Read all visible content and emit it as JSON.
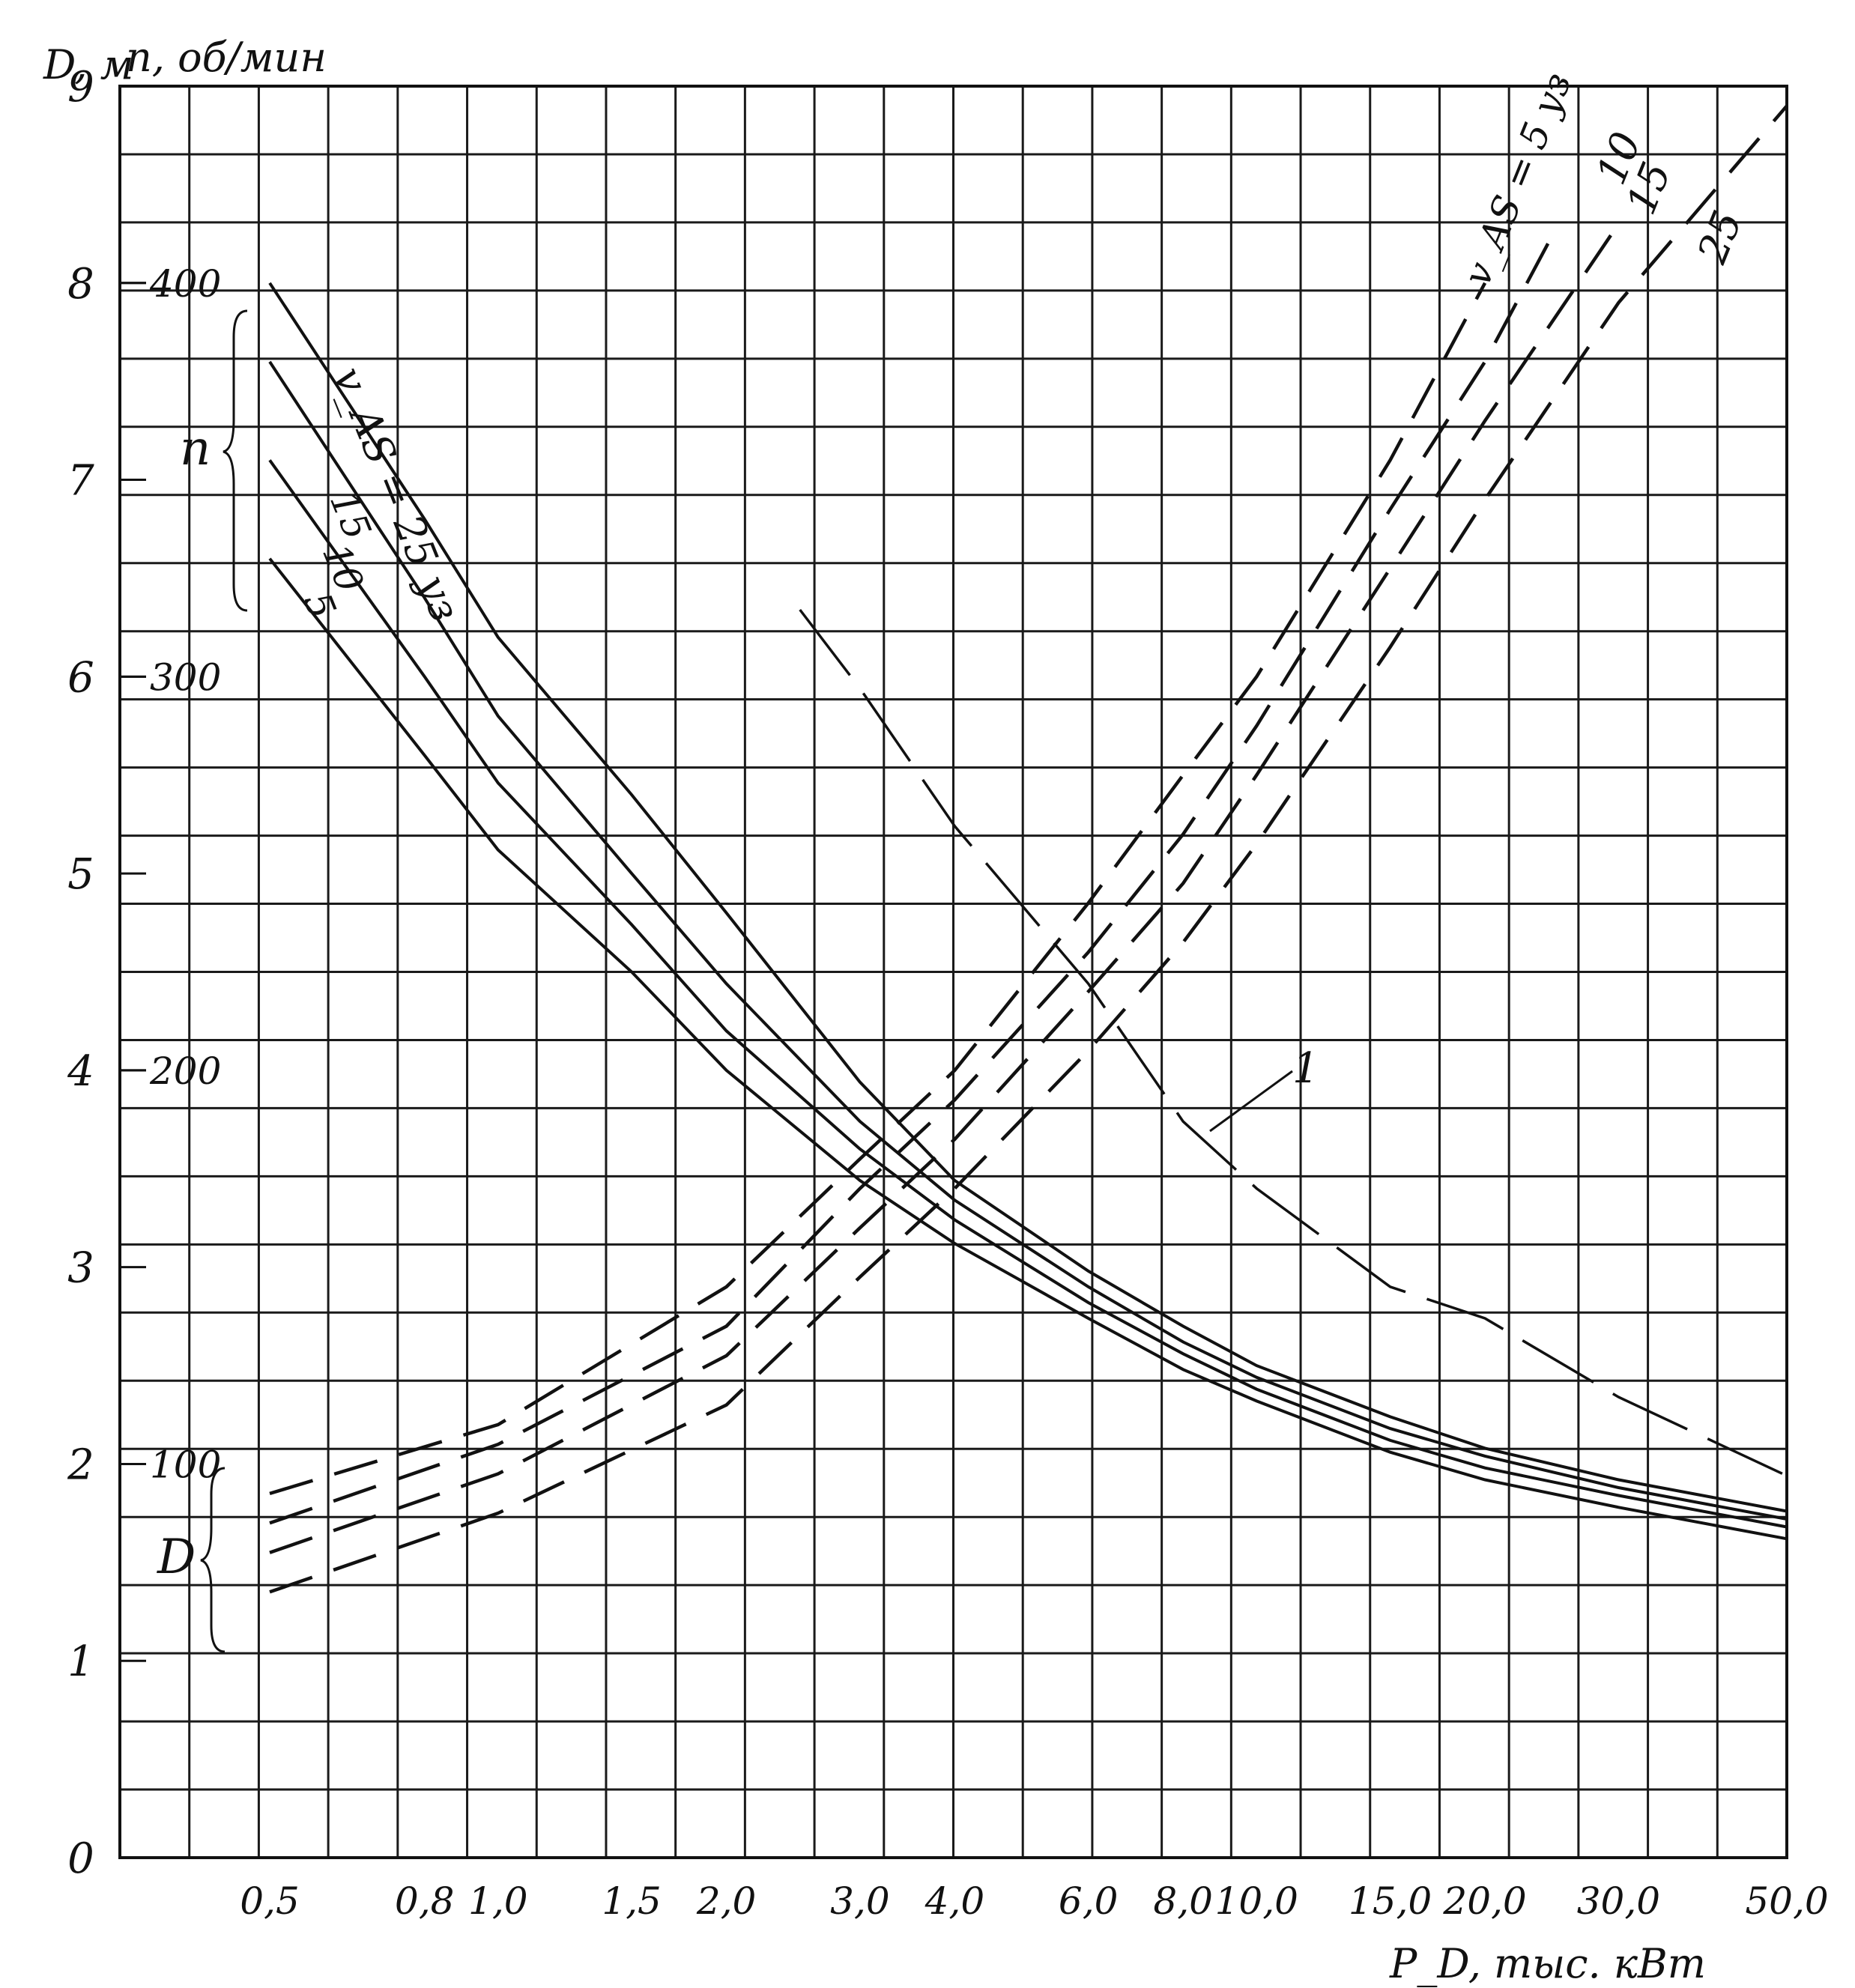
{
  "chart_data": {
    "type": "line",
    "title": "",
    "xlabel": "P_D, тыс. кВт",
    "ylabel_left": "D, м",
    "ylabel_right": "n, об/мин",
    "x_scale": "log",
    "x_ticks": [
      {
        "value": 0.5,
        "label": "0,5"
      },
      {
        "value": 0.8,
        "label": "0,8"
      },
      {
        "value": 1.0,
        "label": "1,0"
      },
      {
        "value": 1.5,
        "label": "1,5"
      },
      {
        "value": 2.0,
        "label": "2,0"
      },
      {
        "value": 3.0,
        "label": "3,0"
      },
      {
        "value": 4.0,
        "label": "4,0"
      },
      {
        "value": 6.0,
        "label": "6,0"
      },
      {
        "value": 8.0,
        "label": "8,0"
      },
      {
        "value": 10.0,
        "label": "10,0"
      },
      {
        "value": 15.0,
        "label": "15,0"
      },
      {
        "value": 20.0,
        "label": "20,0"
      },
      {
        "value": 30.0,
        "label": "30,0"
      },
      {
        "value": 50.0,
        "label": "50,0"
      }
    ],
    "y_ticks_D": [
      "0",
      "1",
      "2",
      "3",
      "4",
      "5",
      "6",
      "7",
      "8",
      "9"
    ],
    "y_ticks_n": [
      {
        "value": 100,
        "label": "100"
      },
      {
        "value": 200,
        "label": "200"
      },
      {
        "value": 300,
        "label": "300"
      },
      {
        "value": 400,
        "label": "400"
      }
    ],
    "ylim_D": [
      0,
      9
    ],
    "ylim_n": [
      0,
      450
    ],
    "grid": true,
    "group_labels": {
      "n": "n",
      "D": "D"
    },
    "series_n": [
      {
        "name": "v_AS = 25 уз",
        "x": [
          0.5,
          0.8,
          1.0,
          1.5,
          2.0,
          3.0,
          4.0,
          6.0,
          8.0,
          10.0,
          15.0,
          20.0,
          30.0,
          50.0
        ],
        "y": [
          400,
          340,
          310,
          270,
          240,
          197,
          172,
          149,
          135,
          125,
          112,
          104,
          96,
          88
        ]
      },
      {
        "name": "15",
        "x": [
          0.5,
          0.8,
          1.0,
          1.5,
          2.0,
          3.0,
          4.0,
          6.0,
          8.0,
          10.0,
          15.0,
          20.0,
          30.0,
          50.0
        ],
        "y": [
          380,
          320,
          290,
          250,
          222,
          187,
          167,
          145,
          131,
          122,
          109,
          102,
          94,
          86
        ]
      },
      {
        "name": "10",
        "x": [
          0.5,
          0.8,
          1.0,
          1.5,
          2.0,
          3.0,
          4.0,
          6.0,
          8.0,
          10.0,
          15.0,
          20.0,
          30.0,
          50.0
        ],
        "y": [
          355,
          300,
          273,
          237,
          210,
          180,
          162,
          141,
          128,
          119,
          106,
          99,
          92,
          84
        ]
      },
      {
        "name": "5",
        "x": [
          0.5,
          0.8,
          1.0,
          1.5,
          2.0,
          3.0,
          4.0,
          6.0,
          8.0,
          10.0,
          15.0,
          20.0,
          30.0,
          50.0
        ],
        "y": [
          330,
          280,
          256,
          225,
          200,
          172,
          156,
          137,
          124,
          116,
          103,
          96,
          89,
          81
        ]
      },
      {
        "name": "1",
        "x": [
          2.5,
          3.0,
          4.0,
          6.0,
          8.0,
          10.0,
          15.0,
          20.0,
          30.0,
          50.0
        ],
        "y": [
          317,
          297,
          262,
          222,
          187,
          170,
          145,
          137,
          117,
          97
        ]
      }
    ],
    "series_D": [
      {
        "name": "v_AS = 5 уз",
        "x": [
          0.5,
          1.0,
          2.0,
          3.0,
          4.0,
          6.0,
          8.0,
          10.0,
          15.0,
          20.0
        ],
        "y": [
          1.85,
          2.2,
          2.9,
          3.55,
          4.0,
          4.85,
          5.5,
          6.0,
          7.1,
          8.0
        ]
      },
      {
        "name": "10",
        "x": [
          0.5,
          1.0,
          2.0,
          3.0,
          4.0,
          6.0,
          8.0,
          10.0,
          15.0,
          20.0,
          25.0
        ],
        "y": [
          1.7,
          2.1,
          2.7,
          3.4,
          3.85,
          4.6,
          5.2,
          5.75,
          6.85,
          7.6,
          8.3
        ]
      },
      {
        "name": "15",
        "x": [
          0.5,
          1.0,
          2.0,
          3.0,
          4.0,
          6.0,
          8.0,
          10.0,
          15.0,
          20.0,
          30.0
        ],
        "y": [
          1.55,
          1.95,
          2.55,
          3.2,
          3.65,
          4.4,
          4.95,
          5.5,
          6.55,
          7.3,
          8.3
        ]
      },
      {
        "name": "25",
        "x": [
          0.5,
          1.0,
          2.0,
          3.0,
          4.0,
          6.0,
          8.0,
          10.0,
          15.0,
          20.0,
          30.0,
          50.0
        ],
        "y": [
          1.35,
          1.75,
          2.3,
          2.95,
          3.4,
          4.1,
          4.65,
          5.15,
          6.15,
          6.9,
          7.9,
          8.9
        ]
      }
    ],
    "annotations": [
      "v_AS = 25 уз",
      "15",
      "10",
      "5",
      "v_AS = 5 уз",
      "10",
      "15",
      "25",
      "1"
    ]
  }
}
